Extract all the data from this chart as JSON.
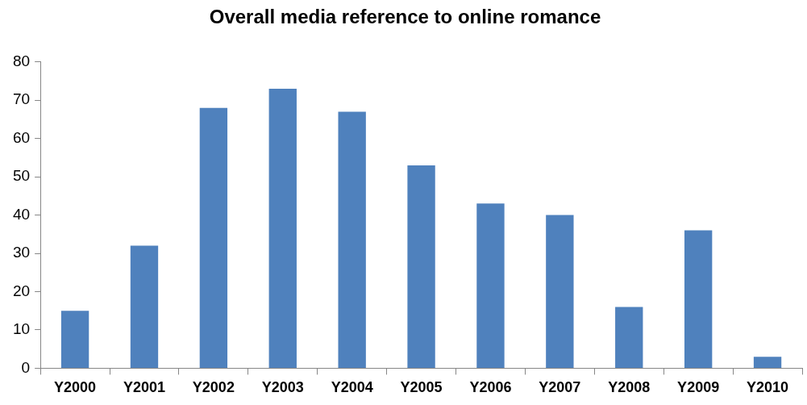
{
  "chart_data": {
    "type": "bar",
    "title": "Overall media reference to online romance",
    "categories": [
      "Y2000",
      "Y2001",
      "Y2002",
      "Y2003",
      "Y2004",
      "Y2005",
      "Y2006",
      "Y2007",
      "Y2008",
      "Y2009",
      "Y2010"
    ],
    "values": [
      15,
      32,
      68,
      73,
      67,
      53,
      43,
      40,
      16,
      36,
      3
    ],
    "color": "#4f81bd",
    "ylim": [
      0,
      80
    ],
    "yticks": [
      0,
      10,
      20,
      30,
      40,
      50,
      60,
      70,
      80
    ],
    "grid": false,
    "legend": false
  }
}
